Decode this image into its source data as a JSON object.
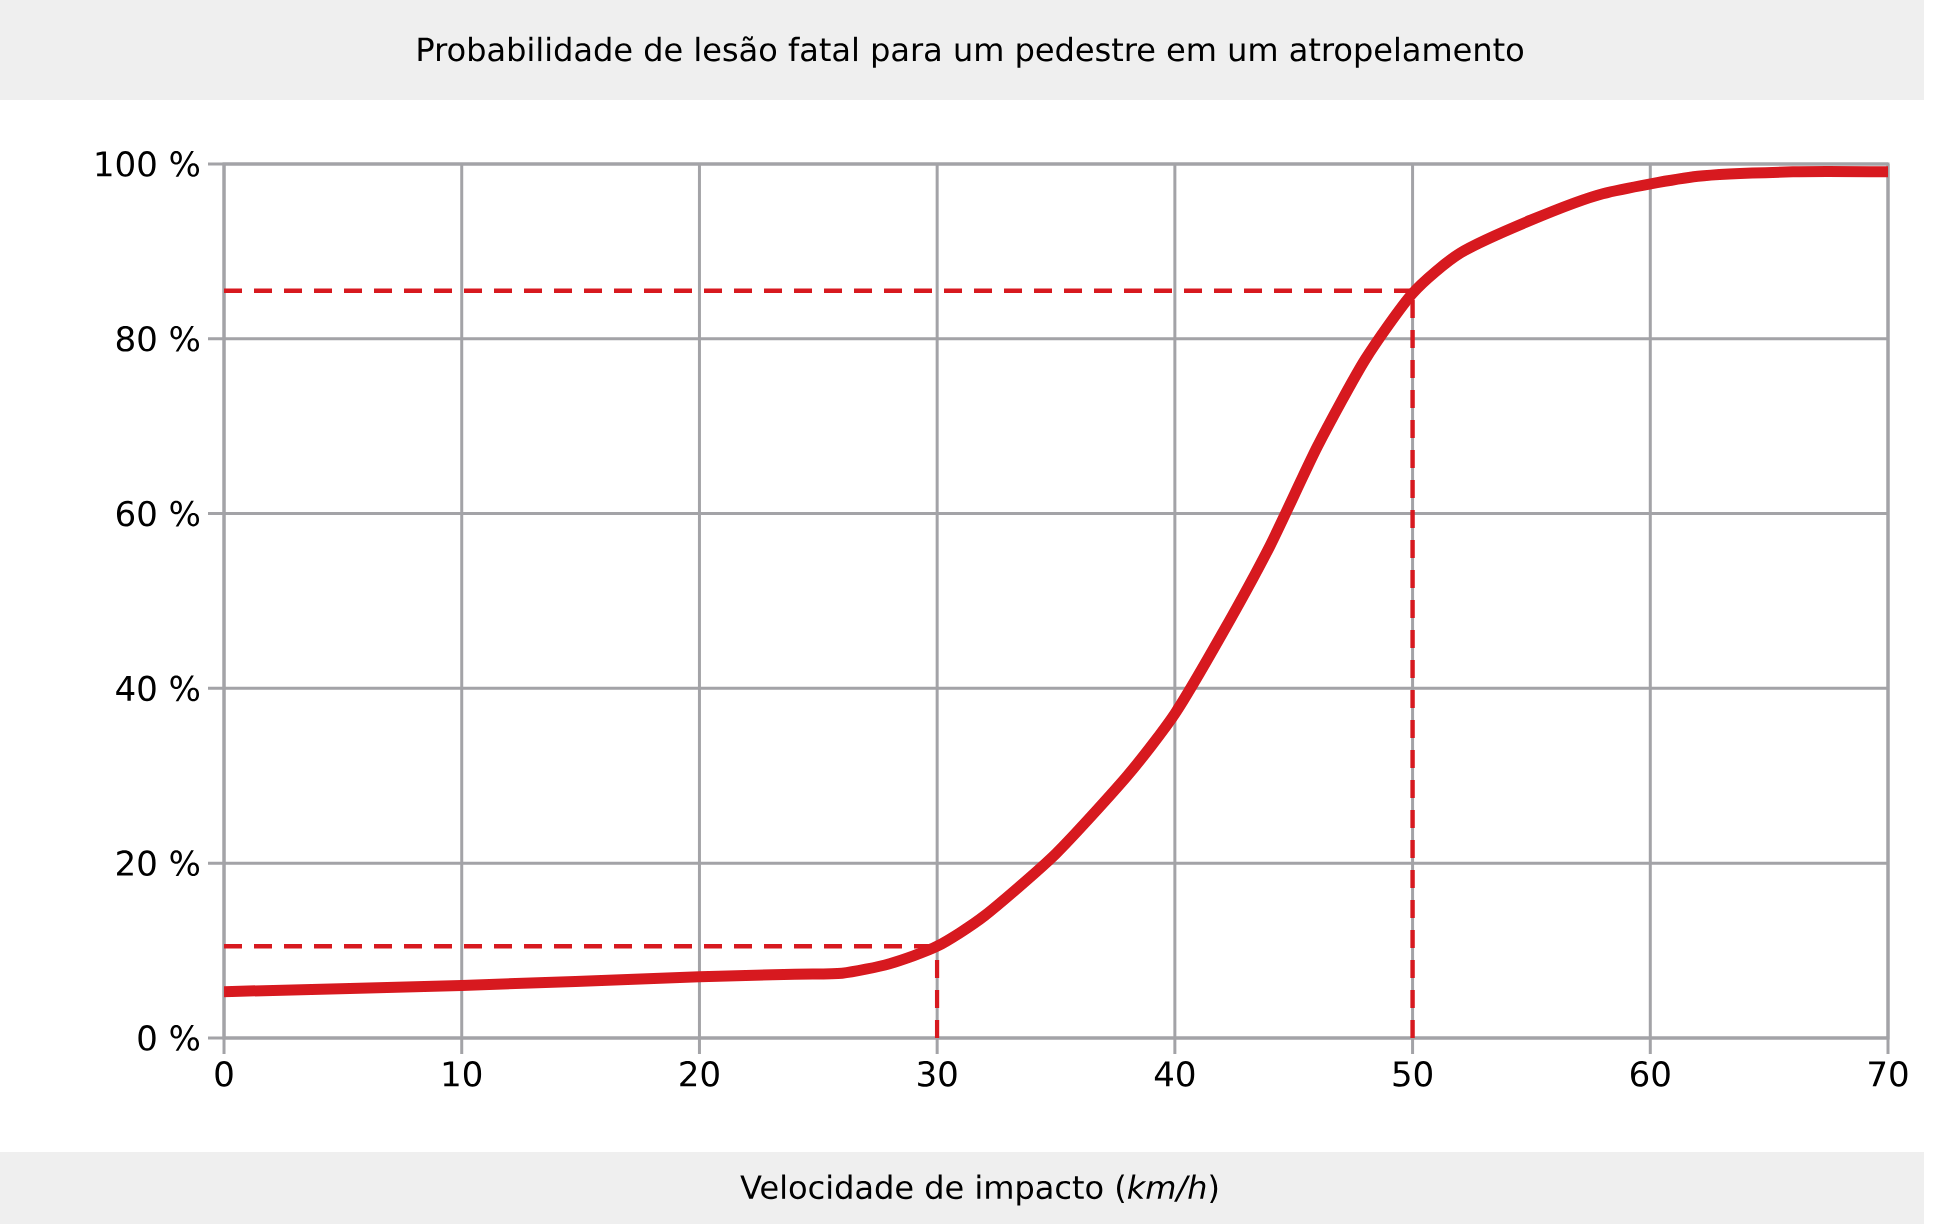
{
  "chart_data": {
    "type": "line",
    "title": "Probabilidade de lesão fatal para um pedestre em um atropelamento",
    "xlabel": "Velocidade de impacto (*km/h*)",
    "xlim": [
      0,
      70
    ],
    "xticks": [
      0,
      10,
      20,
      30,
      40,
      50,
      60,
      70
    ],
    "ylim": [
      0,
      100
    ],
    "yticks": [
      {
        "value": 0,
        "label": "0 %"
      },
      {
        "value": 20,
        "label": "20 %"
      },
      {
        "value": 40,
        "label": "40 %"
      },
      {
        "value": 60,
        "label": "60 %"
      },
      {
        "value": 80,
        "label": "80 %"
      },
      {
        "value": 100,
        "label": "100 %"
      }
    ],
    "grid": true,
    "line_style": "solid",
    "series": [
      {
        "color": "#d7191f",
        "x": [
          0,
          10,
          20,
          24,
          26,
          28,
          30,
          32,
          35,
          38,
          40,
          42,
          44,
          46,
          48,
          50,
          52,
          55,
          58,
          62,
          66,
          70
        ],
        "values": [
          5.3,
          6.0,
          7.0,
          7.3,
          7.4,
          8.5,
          10.5,
          14.0,
          21.1,
          30.0,
          37.1,
          46.3,
          56.3,
          67.7,
          77.6,
          85.2,
          89.8,
          93.6,
          96.6,
          98.6,
          99.1,
          99.1
        ]
      }
    ],
    "ref_lines": [
      {
        "axis": "y",
        "value": 10.5,
        "color": "#d7191f",
        "line_style": "dashed"
      },
      {
        "axis": "y",
        "value": 85.5,
        "color": "#d7191f",
        "line_style": "dashed"
      },
      {
        "axis": "x",
        "value": 30,
        "color": "#d7191f",
        "line_style": "dashed"
      },
      {
        "axis": "x",
        "value": 50,
        "color": "#d7191f",
        "line_style": "dashed"
      }
    ]
  }
}
